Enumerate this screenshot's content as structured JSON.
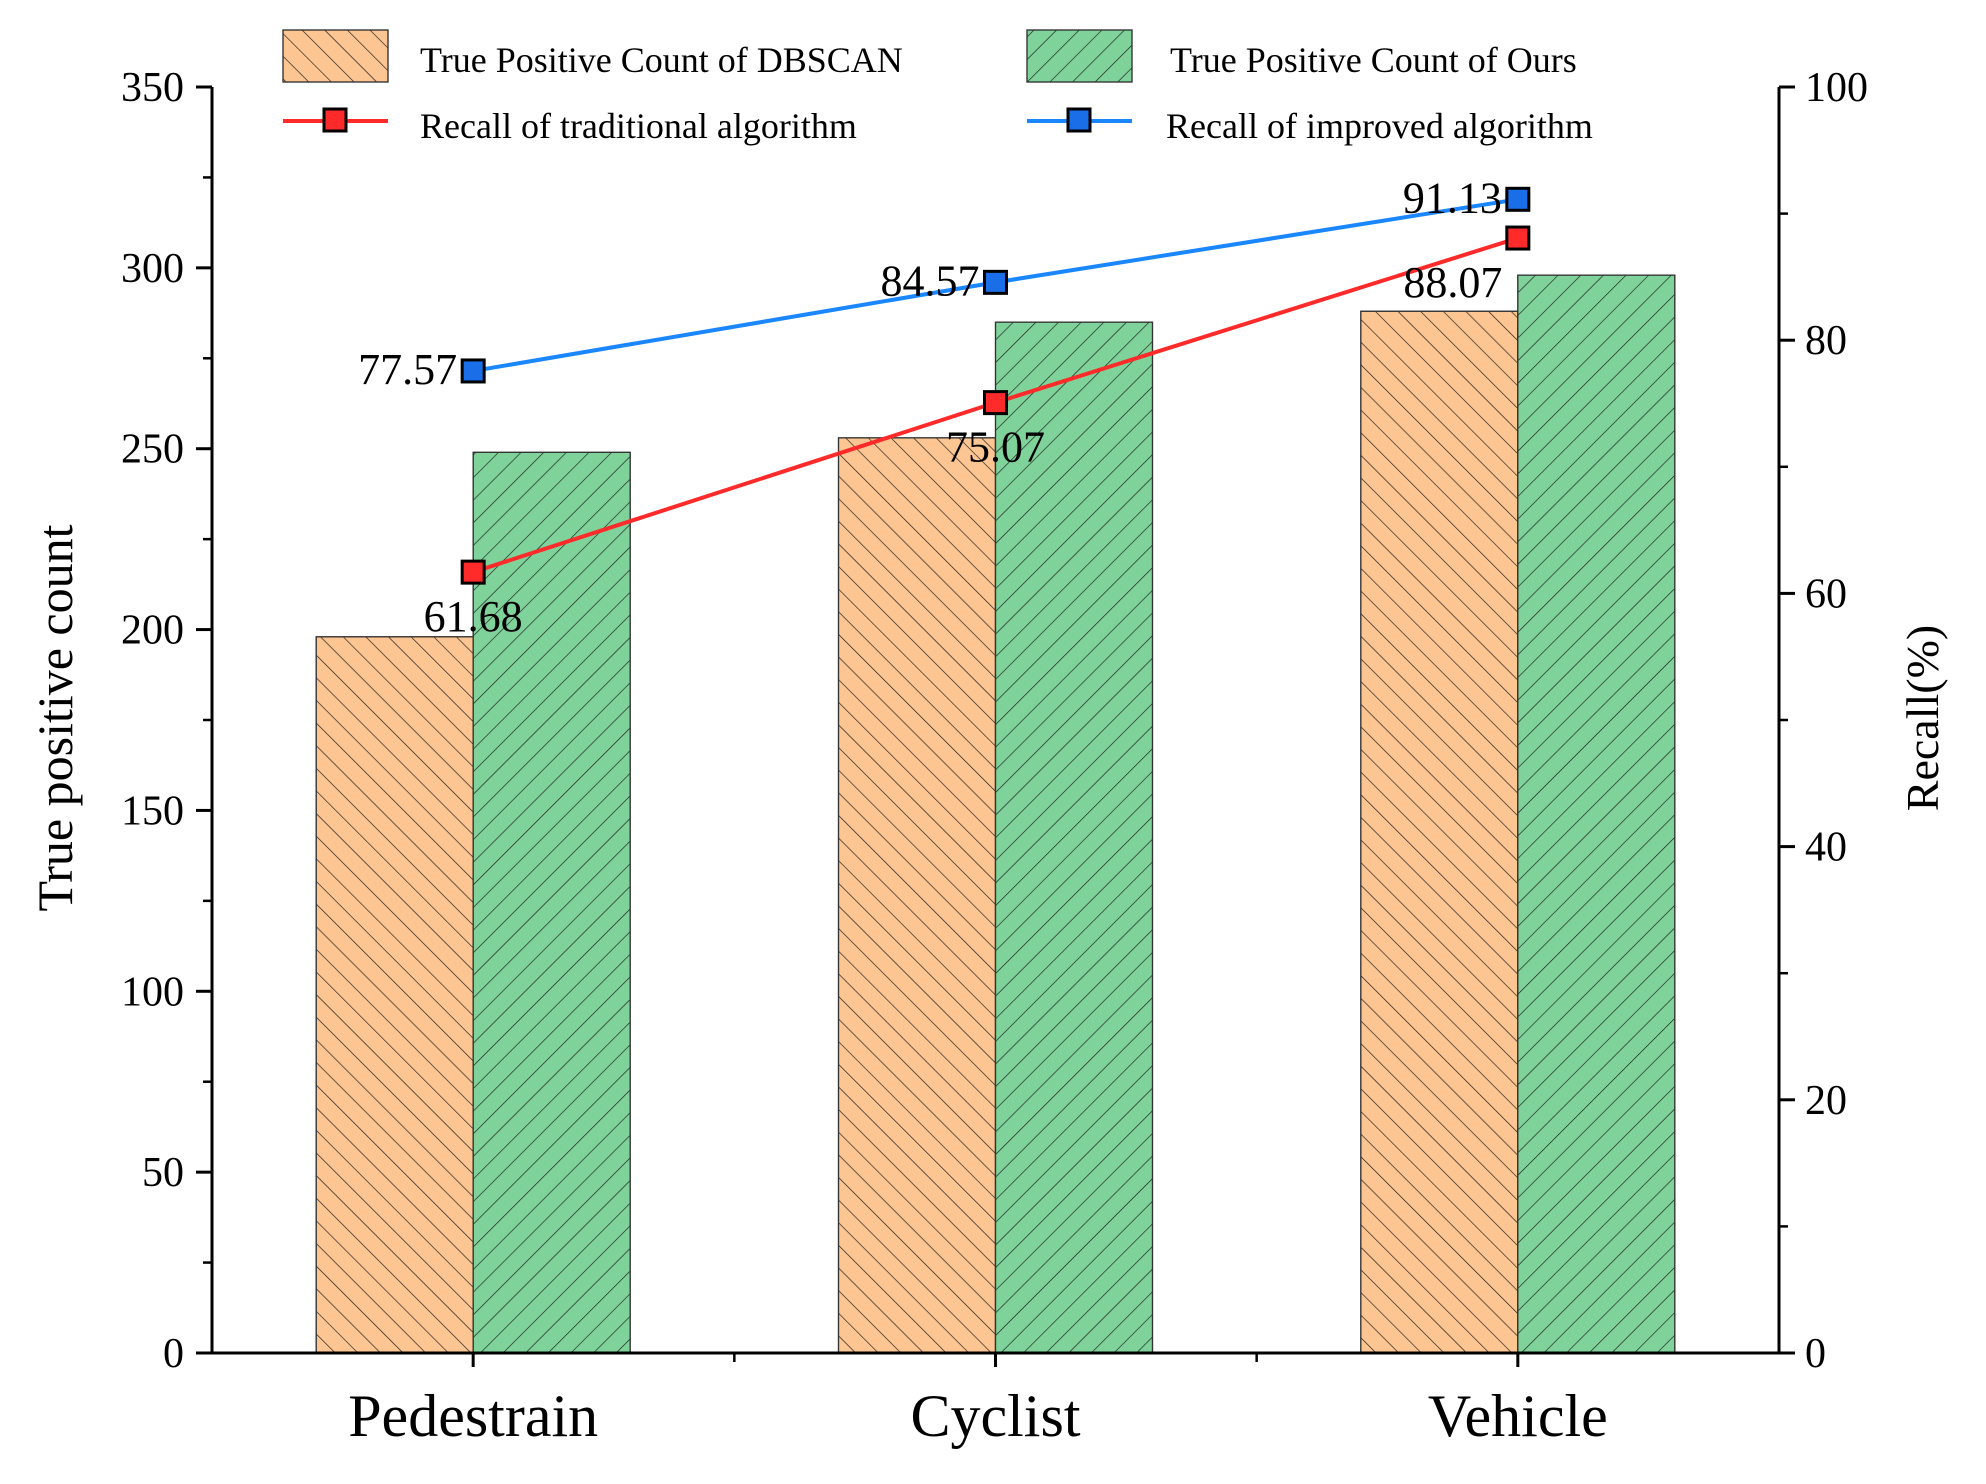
{
  "chart_data": {
    "type": "bar",
    "categories": [
      "Pedestrain",
      "Cyclist",
      "Vehicle"
    ],
    "y_left": {
      "label": "True positive count",
      "lim": [
        0,
        350
      ],
      "ticks": [
        0,
        50,
        100,
        150,
        200,
        250,
        300,
        350
      ]
    },
    "y_right": {
      "label": "Recall(%)",
      "lim": [
        0,
        100
      ],
      "ticks": [
        0,
        20,
        40,
        60,
        80,
        100
      ]
    },
    "bar_series": [
      {
        "name": "True Positive Count of DBSCAN",
        "values": [
          198,
          253,
          288
        ],
        "color": "#fdc592",
        "hatch": "backslash"
      },
      {
        "name": "True Positive Count of Ours",
        "values": [
          249,
          285,
          298
        ],
        "color": "#7fd39a",
        "hatch": "slash"
      }
    ],
    "line_series": [
      {
        "name": "Recall of traditional algorithm",
        "values": [
          61.68,
          75.07,
          88.07
        ],
        "labels": [
          "61.68",
          "75.07",
          "88.07"
        ],
        "color": "#ff2a2a",
        "marker_color": "#ff2a2a"
      },
      {
        "name": "Recall of improved algorithm",
        "values": [
          77.57,
          84.57,
          91.13
        ],
        "labels": [
          "77.57",
          "84.57",
          "91.13"
        ],
        "color": "#1a86ff",
        "marker_color": "#1a6fe8"
      }
    ],
    "legend_position": "top",
    "grid": false
  }
}
